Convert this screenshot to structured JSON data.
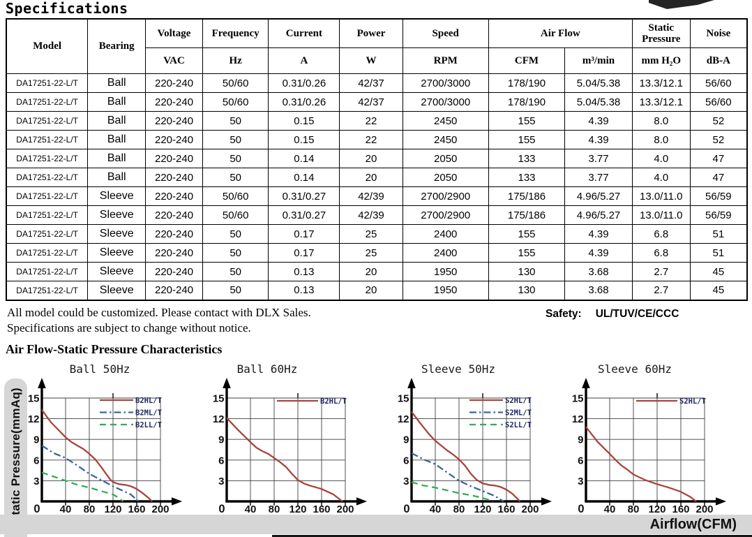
{
  "page": {
    "title": "Specifications",
    "notes": [
      "All model could be customized. Please contact with DLX Sales.",
      "Specifications are subject to change without notice."
    ],
    "safety_label": "Safety:",
    "safety_value": "UL/TUV/CE/CCC",
    "section_heading": "Air Flow-Static Pressure Characteristics",
    "y_axis_label": "Static Pressure(mmAq)",
    "x_axis_label": "Airflow(CFM)"
  },
  "table": {
    "header": {
      "model": "Model",
      "bearing": "Bearing",
      "voltage": "Voltage",
      "voltage_unit": "VAC",
      "frequency": "Frequency",
      "frequency_unit": "Hz",
      "current": "Current",
      "current_unit": "A",
      "power": "Power",
      "power_unit": "W",
      "speed": "Speed",
      "speed_unit": "RPM",
      "airflow": "Air Flow",
      "airflow_unit_cfm": "CFM",
      "airflow_unit_m3": "m³/min",
      "static_pressure": "Static Pressure",
      "static_pressure_unit": "mm H₂O",
      "noise": "Noise",
      "noise_unit": "dB-A"
    },
    "rows": [
      [
        "DA17251-22-L/T",
        "Ball",
        "220-240",
        "50/60",
        "0.31/0.26",
        "42/37",
        "2700/3000",
        "178/190",
        "5.04/5.38",
        "13.3/12.1",
        "56/60"
      ],
      [
        "DA17251-22-L/T",
        "Ball",
        "220-240",
        "50/60",
        "0.31/0.26",
        "42/37",
        "2700/3000",
        "178/190",
        "5.04/5.38",
        "13.3/12.1",
        "56/60"
      ],
      [
        "DA17251-22-L/T",
        "Ball",
        "220-240",
        "50",
        "0.15",
        "22",
        "2450",
        "155",
        "4.39",
        "8.0",
        "52"
      ],
      [
        "DA17251-22-L/T",
        "Ball",
        "220-240",
        "50",
        "0.15",
        "22",
        "2450",
        "155",
        "4.39",
        "8.0",
        "52"
      ],
      [
        "DA17251-22-L/T",
        "Ball",
        "220-240",
        "50",
        "0.14",
        "20",
        "2050",
        "133",
        "3.77",
        "4.0",
        "47"
      ],
      [
        "DA17251-22-L/T",
        "Ball",
        "220-240",
        "50",
        "0.14",
        "20",
        "2050",
        "133",
        "3.77",
        "4.0",
        "47"
      ],
      [
        "DA17251-22-L/T",
        "Sleeve",
        "220-240",
        "50/60",
        "0.31/0.27",
        "42/39",
        "2700/2900",
        "175/186",
        "4.96/5.27",
        "13.0/11.0",
        "56/59"
      ],
      [
        "DA17251-22-L/T",
        "Sleeve",
        "220-240",
        "50/60",
        "0.31/0.27",
        "42/39",
        "2700/2900",
        "175/186",
        "4.96/5.27",
        "13.0/11.0",
        "56/59"
      ],
      [
        "DA17251-22-L/T",
        "Sleeve",
        "220-240",
        "50",
        "0.17",
        "25",
        "2400",
        "155",
        "4.39",
        "6.8",
        "51"
      ],
      [
        "DA17251-22-L/T",
        "Sleeve",
        "220-240",
        "50",
        "0.17",
        "25",
        "2400",
        "155",
        "4.39",
        "6.8",
        "51"
      ],
      [
        "DA17251-22-L/T",
        "Sleeve",
        "220-240",
        "50",
        "0.13",
        "20",
        "1950",
        "130",
        "3.68",
        "2.7",
        "45"
      ],
      [
        "DA17251-22-L/T",
        "Sleeve",
        "220-240",
        "50",
        "0.13",
        "20",
        "1950",
        "130",
        "3.68",
        "2.7",
        "45"
      ]
    ]
  },
  "chart_data": [
    {
      "type": "line",
      "title": "Ball 50Hz",
      "xlabel": "Airflow(CFM)",
      "ylabel": "Static Pressure(mmAq)",
      "xlim": [
        0,
        200
      ],
      "ylim": [
        0,
        15
      ],
      "xticks": [
        40,
        80,
        120,
        160,
        200
      ],
      "yticks": [
        3,
        6,
        9,
        12,
        15
      ],
      "grid": true,
      "legend_position": "top-right",
      "series": [
        {
          "name": "B2HL/T",
          "color": "#a8433e",
          "dash": "solid",
          "points": [
            [
              0,
              13.3
            ],
            [
              15,
              11.5
            ],
            [
              30,
              10.2
            ],
            [
              40,
              9.3
            ],
            [
              50,
              8.6
            ],
            [
              60,
              8.1
            ],
            [
              70,
              7.6
            ],
            [
              80,
              6.9
            ],
            [
              90,
              6.1
            ],
            [
              100,
              5.0
            ],
            [
              110,
              3.8
            ],
            [
              115,
              3.2
            ],
            [
              120,
              2.8
            ],
            [
              130,
              2.5
            ],
            [
              140,
              2.4
            ],
            [
              150,
              2.2
            ],
            [
              160,
              1.8
            ],
            [
              170,
              1.2
            ],
            [
              180,
              0.5
            ],
            [
              186,
              0
            ]
          ]
        },
        {
          "name": "B2ML/T",
          "color": "#3c64a0",
          "dash": "dashdot",
          "points": [
            [
              0,
              8.1
            ],
            [
              20,
              7.0
            ],
            [
              40,
              6.3
            ],
            [
              60,
              5.2
            ],
            [
              80,
              4.0
            ],
            [
              100,
              3.1
            ],
            [
              120,
              2.2
            ],
            [
              135,
              1.6
            ],
            [
              150,
              1.0
            ],
            [
              163,
              0
            ]
          ]
        },
        {
          "name": "B2LL/T",
          "color": "#2fae57",
          "dash": "dashed",
          "points": [
            [
              0,
              4.2
            ],
            [
              20,
              3.6
            ],
            [
              40,
              3.0
            ],
            [
              60,
              2.4
            ],
            [
              80,
              2.0
            ],
            [
              100,
              1.5
            ],
            [
              120,
              1.0
            ],
            [
              130,
              0.5
            ],
            [
              137,
              0
            ]
          ]
        }
      ]
    },
    {
      "type": "line",
      "title": "Ball 60Hz",
      "xlabel": "Airflow(CFM)",
      "ylabel": "Static Pressure(mmAq)",
      "xlim": [
        0,
        200
      ],
      "ylim": [
        0,
        15
      ],
      "xticks": [
        40,
        80,
        120,
        160,
        200
      ],
      "yticks": [
        3,
        6,
        9,
        12,
        15
      ],
      "grid": true,
      "legend_position": "top-right",
      "series": [
        {
          "name": "B2HL/T",
          "color": "#a8433e",
          "dash": "solid",
          "points": [
            [
              0,
              12.1
            ],
            [
              20,
              10.3
            ],
            [
              40,
              8.6
            ],
            [
              50,
              7.8
            ],
            [
              60,
              7.3
            ],
            [
              70,
              6.9
            ],
            [
              80,
              6.3
            ],
            [
              90,
              5.7
            ],
            [
              100,
              5.0
            ],
            [
              110,
              4.0
            ],
            [
              120,
              3.1
            ],
            [
              130,
              2.6
            ],
            [
              140,
              2.3
            ],
            [
              160,
              1.8
            ],
            [
              180,
              1.0
            ],
            [
              195,
              0
            ]
          ]
        }
      ]
    },
    {
      "type": "line",
      "title": "Sleeve 50Hz",
      "xlabel": "Airflow(CFM)",
      "ylabel": "Static Pressure(mmAq)",
      "xlim": [
        0,
        200
      ],
      "ylim": [
        0,
        15
      ],
      "xticks": [
        40,
        80,
        120,
        160,
        200
      ],
      "yticks": [
        3,
        6,
        9,
        12,
        15
      ],
      "grid": true,
      "legend_position": "top-right",
      "series": [
        {
          "name": "S2HL/T",
          "color": "#a8433e",
          "dash": "solid",
          "points": [
            [
              0,
              13.0
            ],
            [
              15,
              11.3
            ],
            [
              30,
              9.7
            ],
            [
              40,
              8.8
            ],
            [
              50,
              8.1
            ],
            [
              60,
              7.4
            ],
            [
              70,
              6.8
            ],
            [
              80,
              6.1
            ],
            [
              90,
              5.2
            ],
            [
              100,
              4.0
            ],
            [
              110,
              3.1
            ],
            [
              120,
              2.6
            ],
            [
              130,
              2.4
            ],
            [
              140,
              2.3
            ],
            [
              150,
              2.1
            ],
            [
              160,
              1.7
            ],
            [
              170,
              1.1
            ],
            [
              183,
              0
            ]
          ]
        },
        {
          "name": "S2ML/T",
          "color": "#3c64a0",
          "dash": "dashdot",
          "points": [
            [
              0,
              7.0
            ],
            [
              20,
              6.1
            ],
            [
              40,
              5.4
            ],
            [
              60,
              4.2
            ],
            [
              80,
              3.0
            ],
            [
              100,
              2.2
            ],
            [
              120,
              1.5
            ],
            [
              140,
              0.8
            ],
            [
              155,
              0
            ]
          ]
        },
        {
          "name": "S2LL/T",
          "color": "#2fae57",
          "dash": "dashed",
          "points": [
            [
              0,
              2.8
            ],
            [
              20,
              2.3
            ],
            [
              40,
              2.0
            ],
            [
              60,
              1.6
            ],
            [
              80,
              1.2
            ],
            [
              100,
              0.9
            ],
            [
              120,
              0.5
            ],
            [
              138,
              0
            ]
          ]
        }
      ]
    },
    {
      "type": "line",
      "title": "Sleeve 60Hz",
      "xlabel": "Airflow(CFM)",
      "ylabel": "Static Pressure(mmAq)",
      "xlim": [
        0,
        200
      ],
      "ylim": [
        0,
        15
      ],
      "xticks": [
        40,
        80,
        120,
        160,
        200
      ],
      "yticks": [
        3,
        6,
        9,
        12,
        15
      ],
      "grid": true,
      "legend_position": "top-right",
      "series": [
        {
          "name": "S2HL/T",
          "color": "#a8433e",
          "dash": "solid",
          "points": [
            [
              0,
              10.8
            ],
            [
              20,
              8.6
            ],
            [
              40,
              6.9
            ],
            [
              50,
              6.0
            ],
            [
              60,
              5.2
            ],
            [
              70,
              4.6
            ],
            [
              80,
              3.9
            ],
            [
              90,
              3.5
            ],
            [
              100,
              3.1
            ],
            [
              120,
              2.5
            ],
            [
              140,
              2.0
            ],
            [
              160,
              1.4
            ],
            [
              175,
              0.7
            ],
            [
              186,
              0
            ]
          ]
        }
      ]
    }
  ]
}
